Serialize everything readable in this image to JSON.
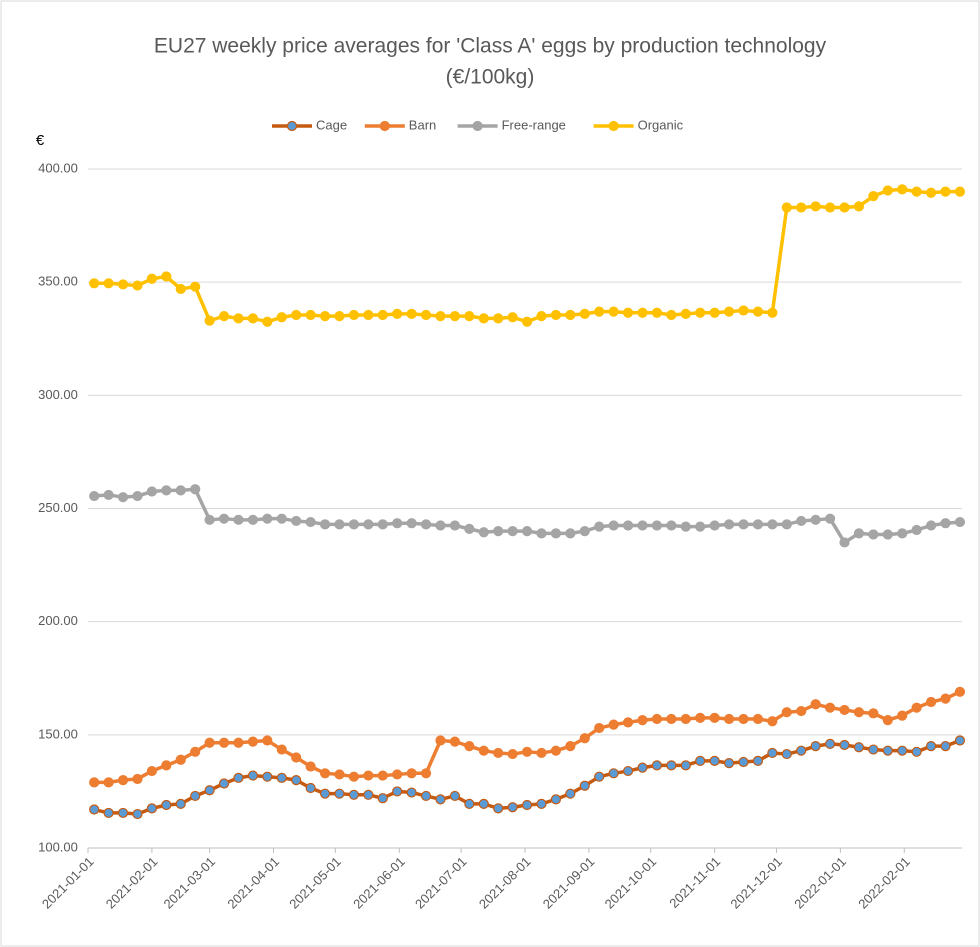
{
  "chart_data": {
    "type": "line",
    "title": "EU27 weekly price averages for 'Class A' eggs by production technology",
    "subtitle": "(€/100kg)",
    "ylabel": "€",
    "x": [
      "2021-01-04",
      "2021-01-11",
      "2021-01-18",
      "2021-01-25",
      "2021-02-01",
      "2021-02-08",
      "2021-02-15",
      "2021-02-22",
      "2021-03-01",
      "2021-03-08",
      "2021-03-15",
      "2021-03-22",
      "2021-03-29",
      "2021-04-05",
      "2021-04-12",
      "2021-04-19",
      "2021-04-26",
      "2021-05-03",
      "2021-05-10",
      "2021-05-17",
      "2021-05-24",
      "2021-05-31",
      "2021-06-07",
      "2021-06-14",
      "2021-06-21",
      "2021-06-28",
      "2021-07-05",
      "2021-07-12",
      "2021-07-19",
      "2021-07-26",
      "2021-08-02",
      "2021-08-09",
      "2021-08-16",
      "2021-08-23",
      "2021-08-30",
      "2021-09-06",
      "2021-09-13",
      "2021-09-20",
      "2021-09-27",
      "2021-10-04",
      "2021-10-11",
      "2021-10-18",
      "2021-10-25",
      "2021-11-01",
      "2021-11-08",
      "2021-11-15",
      "2021-11-22",
      "2021-11-29",
      "2021-12-06",
      "2021-12-13",
      "2021-12-20",
      "2021-12-27",
      "2022-01-03",
      "2022-01-10",
      "2022-01-17",
      "2022-01-24",
      "2022-01-31",
      "2022-02-07",
      "2022-02-14",
      "2022-02-21",
      "2022-02-28"
    ],
    "xlim": [
      "2021-01-01",
      "2022-03-01"
    ],
    "xticks": [
      "2021-01-01",
      "2021-02-01",
      "2021-03-01",
      "2021-04-01",
      "2021-05-01",
      "2021-06-01",
      "2021-07-01",
      "2021-08-01",
      "2021-09-01",
      "2021-10-01",
      "2021-11-01",
      "2021-12-01",
      "2022-01-01",
      "2022-02-01"
    ],
    "ylim": [
      100,
      400
    ],
    "yticks": [
      {
        "value": 100,
        "label": "100.00"
      },
      {
        "value": 150,
        "label": "150.00"
      },
      {
        "value": 200,
        "label": "200.00"
      },
      {
        "value": 250,
        "label": "250.00"
      },
      {
        "value": 300,
        "label": "300.00"
      },
      {
        "value": 350,
        "label": "350.00"
      },
      {
        "value": 400,
        "label": "400.00"
      }
    ],
    "grid": true,
    "legend": "top",
    "series": [
      {
        "name": "Cage",
        "color": "#c55a11",
        "marker_color": "#5b9bd5",
        "values": [
          117,
          115.5,
          115.5,
          115,
          117.5,
          119,
          119.5,
          123,
          125.5,
          128.5,
          131,
          132,
          131.5,
          131,
          130,
          126.5,
          124,
          124,
          123.5,
          123.5,
          122,
          125,
          124.5,
          123,
          121.5,
          123,
          119.5,
          119.5,
          117.5,
          118,
          119,
          119.5,
          121.5,
          124,
          127.5,
          131.5,
          133,
          134,
          135.5,
          136.5,
          136.5,
          136.5,
          138.5,
          138.5,
          137.5,
          138,
          138.5,
          142,
          141.5,
          143,
          145,
          146,
          145.5,
          144.5,
          143.5,
          143,
          143,
          142.5,
          145,
          145,
          147.5
        ]
      },
      {
        "name": "Barn",
        "color": "#ed7d31",
        "values": [
          129,
          129,
          130,
          130.5,
          134,
          136.5,
          139,
          142.5,
          146.5,
          146.5,
          146.5,
          147,
          147.5,
          143.5,
          140,
          136,
          133,
          132.5,
          131.5,
          132,
          132,
          132.5,
          133,
          133,
          147.5,
          147,
          145,
          143,
          142,
          141.5,
          142.5,
          142,
          143,
          145,
          148.5,
          153,
          154.5,
          155.5,
          156.5,
          157,
          157,
          157,
          157.5,
          157.5,
          157,
          157,
          157,
          156,
          160,
          160.5,
          163.5,
          162,
          161,
          160,
          159.5,
          156.5,
          158.5,
          162,
          164.5,
          166,
          169
        ]
      },
      {
        "name": "Free-range",
        "color": "#a5a5a5",
        "values": [
          255.5,
          256,
          255,
          255.5,
          257.5,
          258,
          258,
          258.5,
          245,
          245.5,
          245,
          245,
          245.5,
          245.5,
          244.5,
          244,
          243,
          243,
          243,
          243,
          243,
          243.5,
          243.5,
          243,
          242.5,
          242.5,
          241,
          239.5,
          240,
          240,
          240,
          239,
          239,
          239,
          240,
          242,
          242.5,
          242.5,
          242.5,
          242.5,
          242.5,
          242,
          242,
          242.5,
          243,
          243,
          243,
          243,
          243,
          244.5,
          245,
          245.5,
          235,
          239,
          238.5,
          238.5,
          239,
          240.5,
          242.5,
          243.5,
          244
        ]
      },
      {
        "name": "Organic",
        "color": "#ffc000",
        "values": [
          349.5,
          349.5,
          349,
          348.5,
          351.5,
          352.5,
          347,
          348,
          333,
          335,
          334,
          334,
          332.5,
          334.5,
          335.5,
          335.5,
          335,
          335,
          335.5,
          335.5,
          335.5,
          336,
          336,
          335.5,
          335,
          335,
          335,
          334,
          334,
          334.5,
          332.5,
          335,
          335.5,
          335.5,
          336,
          337,
          337,
          336.5,
          336.5,
          336.5,
          335.5,
          336,
          336.5,
          336.5,
          337,
          337.5,
          337,
          336.5,
          383,
          383,
          383.5,
          383,
          383,
          383.5,
          388,
          390.5,
          391,
          390,
          389.5,
          390,
          390
        ]
      }
    ]
  }
}
